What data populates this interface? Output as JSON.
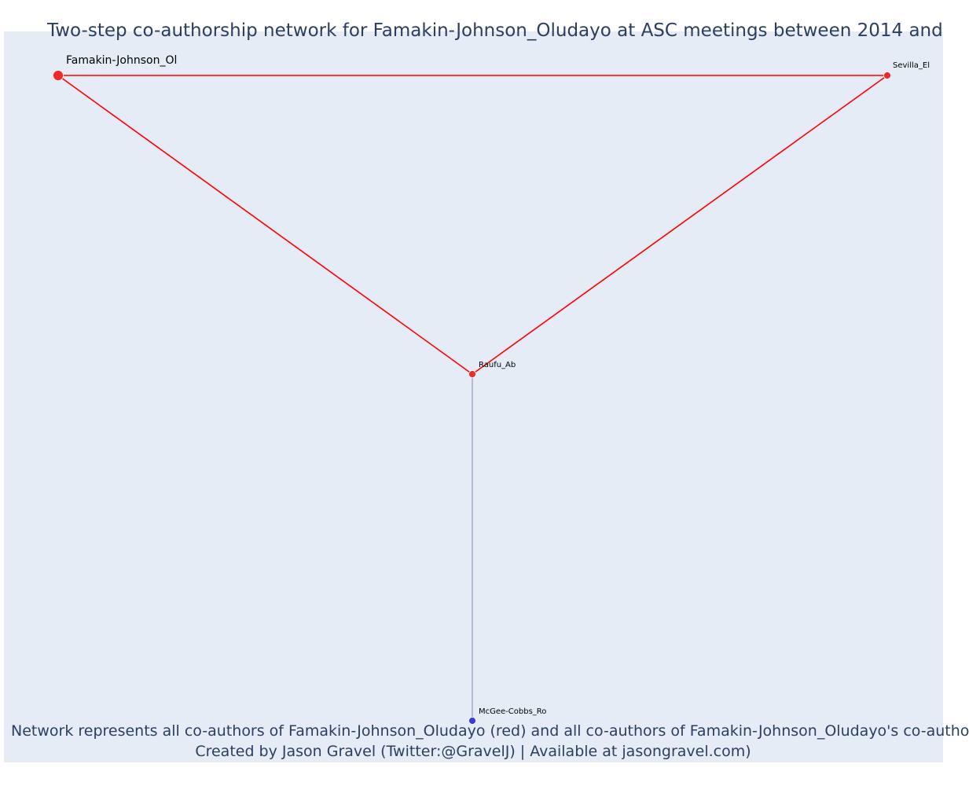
{
  "chart_data": {
    "type": "network",
    "title": "Two-step co-authorship network for Famakin-Johnson_Oludayo at ASC meetings between 2014 and",
    "caption_line1": "Network represents all co-authors of Famakin-Johnson_Oludayo (red) and all co-authors of Famakin-Johnson_Oludayo's co-autho",
    "caption_line2": "Created by Jason Gravel (Twitter:@GravelJ) | Available at jasongravel.com)",
    "grid": false,
    "nodes": [
      {
        "id": "famakin",
        "label": "Famakin-Johnson_Ol",
        "group": "focal",
        "color": "#f02a2a"
      },
      {
        "id": "sevilla",
        "label": "Sevilla_El",
        "group": "co-author",
        "color": "#f02a2a"
      },
      {
        "id": "raufu",
        "label": "Raufu_Ab",
        "group": "co-author",
        "color": "#f02a2a"
      },
      {
        "id": "mcgee",
        "label": "McGee-Cobbs_Ro",
        "group": "co-author-of-co-author",
        "color": "#3a3af0"
      }
    ],
    "edges": [
      {
        "source": "famakin",
        "target": "sevilla",
        "color": "#ff0000"
      },
      {
        "source": "famakin",
        "target": "raufu",
        "color": "#ff0000"
      },
      {
        "source": "sevilla",
        "target": "raufu",
        "color": "#ff0000"
      },
      {
        "source": "raufu",
        "target": "mcgee",
        "color": "#8888aa"
      }
    ]
  }
}
